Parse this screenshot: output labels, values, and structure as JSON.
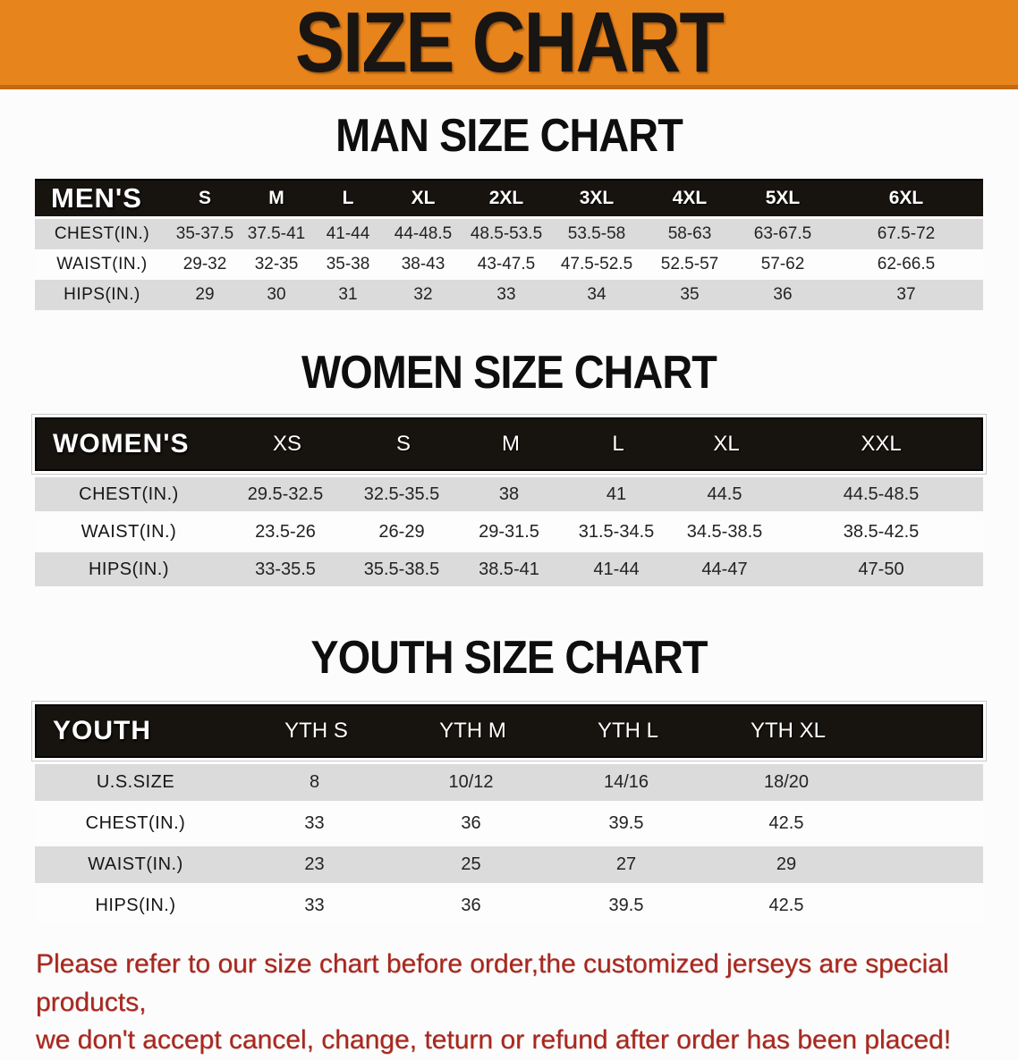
{
  "page": {
    "banner_title": "SIZE CHART",
    "note_line1": "Please refer to our size chart before order,the customized jerseys are special products,",
    "note_line2": "we don't accept cancel, change, teturn or refund after order has been placed!"
  },
  "colors": {
    "banner_orange": "#E8841C",
    "banner_edge": "#C3690F",
    "header_black": "#17130F",
    "row_gray": "#DBDBDB",
    "row_white": "#FDFDFD",
    "note_red": "#A8281F"
  },
  "sections": {
    "men": {
      "title": "MAN SIZE CHART",
      "table": {
        "name_header": "MEN'S",
        "size_headers": [
          "S",
          "M",
          "L",
          "XL",
          "2XL",
          "3XL",
          "4XL",
          "5XL",
          "6XL"
        ],
        "rows": [
          {
            "label": "CHEST(IN.)",
            "values": [
              "35-37.5",
              "37.5-41",
              "41-44",
              "44-48.5",
              "48.5-53.5",
              "53.5-58",
              "58-63",
              "63-67.5",
              "67.5-72"
            ]
          },
          {
            "label": "WAIST(IN.)",
            "values": [
              "29-32",
              "32-35",
              "35-38",
              "38-43",
              "43-47.5",
              "47.5-52.5",
              "52.5-57",
              "57-62",
              "62-66.5"
            ]
          },
          {
            "label": "HIPS(IN.)",
            "values": [
              "29",
              "30",
              "31",
              "32",
              "33",
              "34",
              "35",
              "36",
              "37"
            ]
          }
        ]
      }
    },
    "women": {
      "title": "WOMEN SIZE CHART",
      "table": {
        "name_header": "WOMEN'S",
        "size_headers": [
          "XS",
          "S",
          "M",
          "L",
          "XL",
          "XXL"
        ],
        "rows": [
          {
            "label": "CHEST(IN.)",
            "values": [
              "29.5-32.5",
              "32.5-35.5",
              "38",
              "41",
              "44.5",
              "44.5-48.5"
            ]
          },
          {
            "label": "WAIST(IN.)",
            "values": [
              "23.5-26",
              "26-29",
              "29-31.5",
              "31.5-34.5",
              "34.5-38.5",
              "38.5-42.5"
            ]
          },
          {
            "label": "HIPS(IN.)",
            "values": [
              "33-35.5",
              "35.5-38.5",
              "38.5-41",
              "41-44",
              "44-47",
              "47-50"
            ]
          }
        ]
      }
    },
    "youth": {
      "title": "YOUTH SIZE CHART",
      "table": {
        "name_header": "YOUTH",
        "size_headers": [
          "YTH S",
          "YTH M",
          "YTH L",
          "YTH XL"
        ],
        "rows": [
          {
            "label": "U.S.SIZE",
            "values": [
              "8",
              "10/12",
              "14/16",
              "18/20"
            ]
          },
          {
            "label": "CHEST(IN.)",
            "values": [
              "33",
              "36",
              "39.5",
              "42.5"
            ]
          },
          {
            "label": "WAIST(IN.)",
            "values": [
              "23",
              "25",
              "27",
              "29"
            ]
          },
          {
            "label": "HIPS(IN.)",
            "values": [
              "33",
              "36",
              "39.5",
              "42.5"
            ]
          }
        ]
      }
    }
  }
}
